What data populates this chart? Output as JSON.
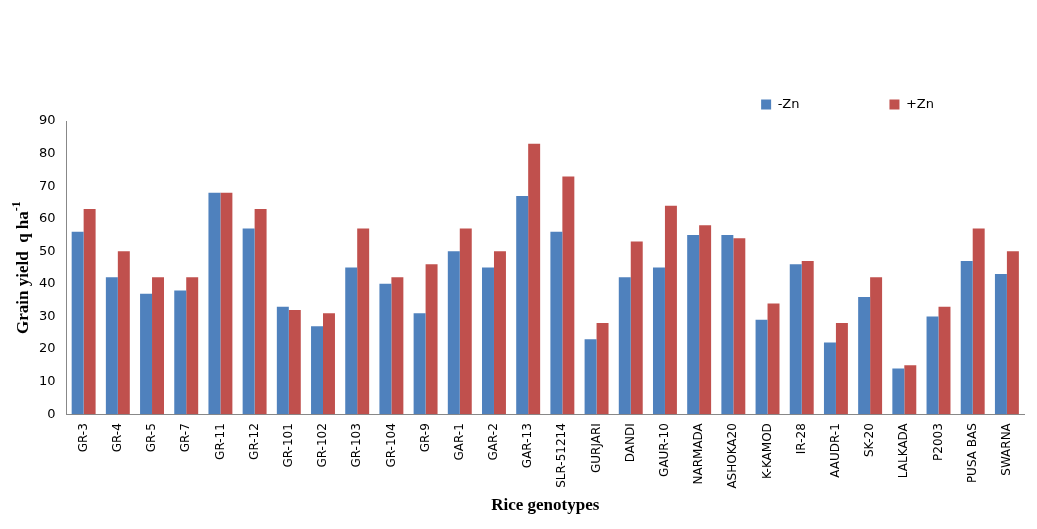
{
  "chart_data": {
    "type": "bar",
    "xlabel": "Rice genotypes",
    "ylabel": "Grain yield  q ha$^{-1}$",
    "categories": [
      "GR-3",
      "GR-4",
      "GR-5",
      "GR-7",
      "GR-11",
      "GR-12",
      "GR-101",
      "GR-102",
      "GR-103",
      "GR-104",
      "GR-9",
      "GAR-1",
      "GAR-2",
      "GAR-13",
      "SLR-51214",
      "GURJARI",
      "DANDI",
      "GAUR-10",
      "NARMADA",
      "ASHOKA20",
      "K-KAMOD",
      "IR-28",
      "AAUDR-1",
      "SK-20",
      "LALKADA",
      "P2003",
      "PUSA BAS",
      "SWARNA"
    ],
    "series": [
      {
        "name": "-Zn",
        "color": "#4f81bd",
        "values": [
          56,
          42,
          37,
          38,
          68,
          57,
          33,
          27,
          45,
          40,
          31,
          50,
          45,
          67,
          56,
          23,
          42,
          45,
          55,
          55,
          29,
          46,
          22,
          36,
          14,
          30,
          47,
          43
        ]
      },
      {
        "name": "+Zn",
        "color": "#c0504d",
        "values": [
          63,
          50,
          42,
          42,
          68,
          63,
          32,
          31,
          57,
          42,
          46,
          57,
          50,
          83,
          73,
          28,
          53,
          64,
          58,
          54,
          34,
          47,
          28,
          42,
          15,
          33,
          57,
          50
        ]
      }
    ],
    "ylim": [
      0,
      90
    ],
    "yticks": [
      0,
      10,
      20,
      30,
      40,
      50,
      60,
      70,
      80,
      90
    ],
    "grid": false,
    "legend": "top right"
  }
}
